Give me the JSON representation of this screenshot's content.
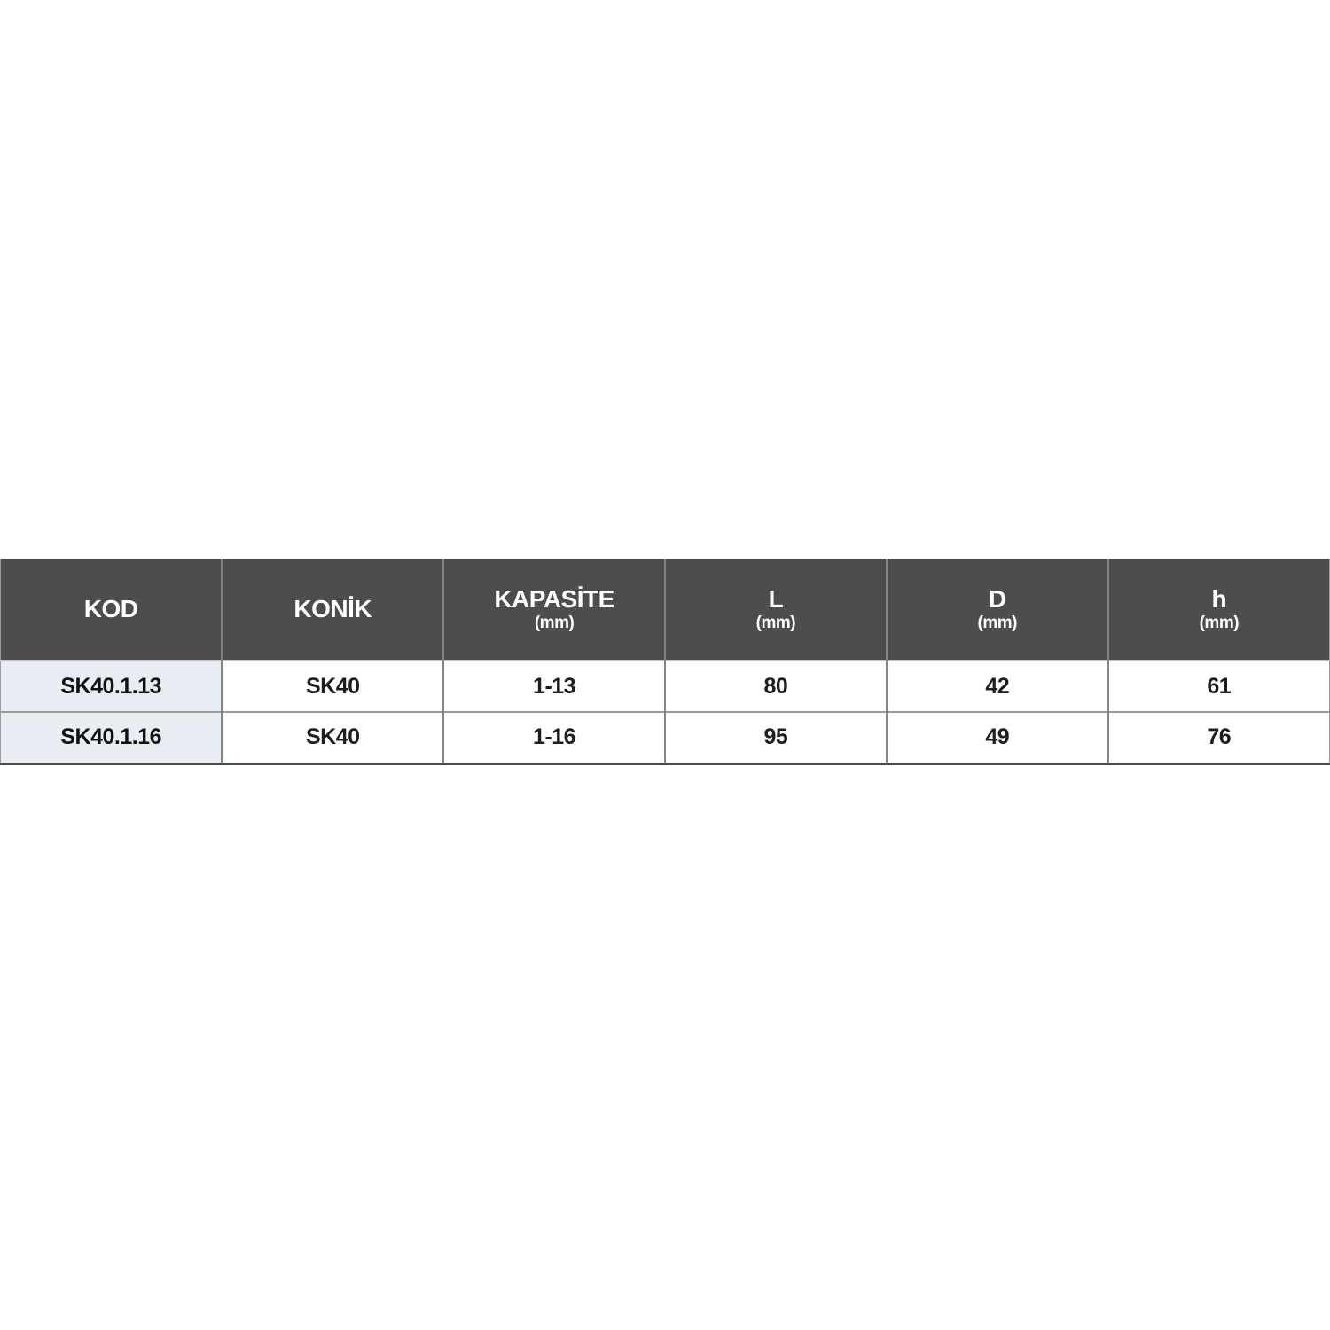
{
  "table": {
    "columns": [
      {
        "label": "KOD",
        "unit": ""
      },
      {
        "label": "KONİK",
        "unit": ""
      },
      {
        "label": "KAPASİTE",
        "unit": "(mm)"
      },
      {
        "label": "L",
        "unit": "(mm)"
      },
      {
        "label": "D",
        "unit": "(mm)"
      },
      {
        "label": "h",
        "unit": "(mm)"
      }
    ],
    "rows": [
      [
        "SK40.1.13",
        "SK40",
        "1-13",
        "80",
        "42",
        "61"
      ],
      [
        "SK40.1.16",
        "SK40",
        "1-16",
        "95",
        "49",
        "76"
      ]
    ],
    "colors": {
      "header_bg": "#4d4d4d",
      "header_text": "#ffffff",
      "kod_column_bg": "#e8edf3",
      "cell_bg": "#ffffff",
      "cell_text": "#1e1e1e",
      "grid_line": "#848484",
      "bottom_border": "#4d4d4d"
    }
  }
}
